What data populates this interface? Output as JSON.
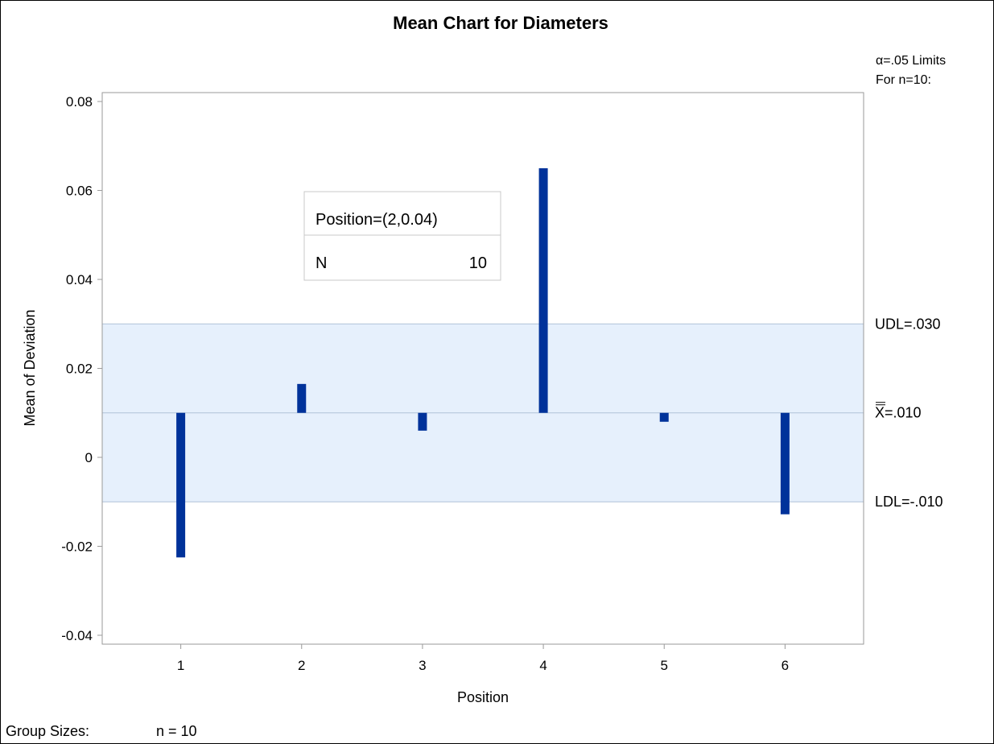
{
  "chart_data": {
    "type": "bar",
    "title": "Mean Chart for Diameters",
    "xlabel": "Position",
    "ylabel": "Mean of Deviation",
    "categories": [
      "1",
      "2",
      "3",
      "4",
      "5",
      "6"
    ],
    "x": [
      1,
      2,
      3,
      4,
      5,
      6
    ],
    "values": [
      -0.0225,
      0.0165,
      0.006,
      0.065,
      0.008,
      -0.0128
    ],
    "baseline": 0.01,
    "ylim": [
      -0.042,
      0.082
    ],
    "xlim": [
      0.35,
      6.65
    ],
    "yticks": [
      -0.04,
      -0.02,
      0,
      0.02,
      0.04,
      0.06,
      0.08
    ],
    "ytick_labels": [
      "-0.04",
      "-0.02",
      "0",
      "0.02",
      "0.04",
      "0.06",
      "0.08"
    ],
    "decision_band": {
      "lower": -0.01,
      "upper": 0.03,
      "center": 0.01
    },
    "limit_labels": {
      "udl": "UDL=.030",
      "center": "X=.010",
      "ldl": "LDL=-.010"
    },
    "limits_header": [
      "α=.05 Limits",
      "For n=10:"
    ],
    "inset": {
      "row1": "Position=(2,0.04)",
      "row2_label": "N",
      "row2_value": "10"
    },
    "group_sizes": {
      "label": "Group Sizes:",
      "value": "n = 10"
    },
    "colors": {
      "bar": "#00329a",
      "band_fill": "#e6f0fc",
      "band_line": "#b0c2d8",
      "axis": "#9a9a9a"
    },
    "grid": false
  }
}
